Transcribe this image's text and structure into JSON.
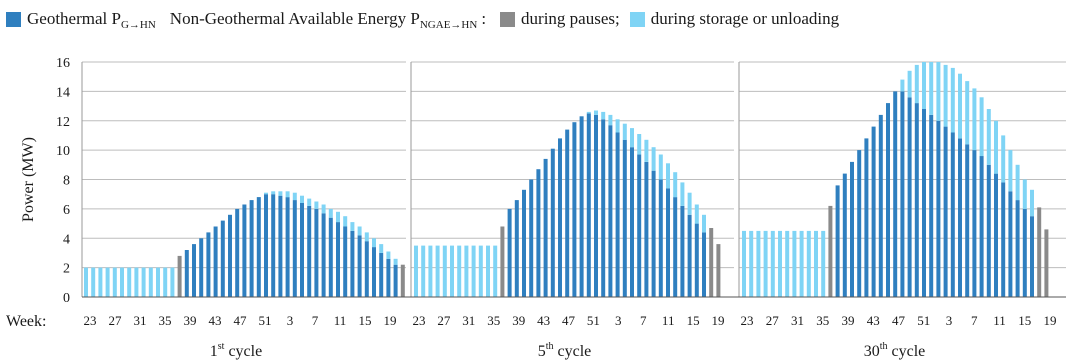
{
  "legend": {
    "geo_label": "Geothermal P",
    "geo_sub": "G→HN",
    "ngae_label": "Non-Geothermal Available Energy P",
    "ngae_sub": "NGAE→HN",
    "ngae_suffix": ":",
    "pause_label": "during pauses;",
    "storage_label": "during storage or unloading"
  },
  "colors": {
    "geothermal": "#2f7fbf",
    "pause": "#8a8a8a",
    "storage": "#7fd4f5",
    "grid": "#bdbdbd"
  },
  "chart_data": {
    "type": "bar",
    "ylabel": "Power (MW)",
    "xlabel": "Week:",
    "ylim": [
      0,
      16
    ],
    "yticks": [
      0,
      2,
      4,
      6,
      8,
      10,
      12,
      14,
      16
    ],
    "grid": true,
    "legend_position": "top",
    "xtick_labels": [
      "23",
      "27",
      "31",
      "35",
      "39",
      "43",
      "47",
      "51",
      "3",
      "7",
      "11",
      "15",
      "19"
    ],
    "panels": [
      {
        "title": "1st cycle",
        "title_base": "1",
        "title_sup": "st",
        "title_rest": " cycle",
        "storage_level": 2.0,
        "pause_values": [
          2.8,
          2.2
        ],
        "geothermal": [
          3.2,
          3.6,
          4.0,
          4.4,
          4.8,
          5.2,
          5.6,
          6.0,
          6.3,
          6.6,
          6.8,
          7.0,
          7.0,
          6.9,
          6.8,
          6.6,
          6.4,
          6.2,
          6.0,
          5.7,
          5.4,
          5.1,
          4.8,
          4.5,
          4.2,
          3.8,
          3.4,
          3.0,
          2.6,
          2.2
        ],
        "ngae_unloading": [
          0,
          0,
          0,
          0,
          0,
          0,
          0,
          0,
          0,
          0,
          0,
          0.1,
          0.2,
          0.3,
          0.4,
          0.5,
          0.5,
          0.5,
          0.5,
          0.6,
          0.6,
          0.7,
          0.7,
          0.6,
          0.6,
          0.6,
          0.6,
          0.6,
          0.5,
          0.4
        ]
      },
      {
        "title": "5th cycle",
        "title_base": "5",
        "title_sup": "th",
        "title_rest": " cycle",
        "storage_level": 3.5,
        "pause_values": [
          4.8,
          4.7,
          3.6
        ],
        "geothermal": [
          6.0,
          6.6,
          7.3,
          8.0,
          8.7,
          9.4,
          10.1,
          10.8,
          11.4,
          11.9,
          12.3,
          12.5,
          12.4,
          12.1,
          11.7,
          11.2,
          10.7,
          10.2,
          9.7,
          9.2,
          8.6,
          8.0,
          7.4,
          6.8,
          6.2,
          5.6,
          5.0,
          4.4
        ],
        "ngae_unloading": [
          0,
          0,
          0,
          0,
          0,
          0,
          0,
          0,
          0,
          0,
          0,
          0.1,
          0.3,
          0.5,
          0.7,
          0.9,
          1.1,
          1.3,
          1.4,
          1.5,
          1.6,
          1.7,
          1.7,
          1.7,
          1.6,
          1.5,
          1.3,
          1.2
        ]
      },
      {
        "title": "30th cycle",
        "title_base": "30",
        "title_sup": "th",
        "title_rest": " cycle",
        "storage_level": 4.5,
        "pause_values": [
          6.2,
          6.1,
          4.6
        ],
        "geothermal": [
          7.6,
          8.4,
          9.2,
          10.0,
          10.8,
          11.6,
          12.4,
          13.2,
          14.0,
          14.0,
          13.6,
          13.2,
          12.8,
          12.4,
          12.0,
          11.6,
          11.2,
          10.8,
          10.4,
          10.0,
          9.6,
          9.0,
          8.4,
          7.8,
          7.2,
          6.6,
          6.0,
          5.5
        ],
        "ngae_unloading": [
          0,
          0,
          0,
          0,
          0,
          0,
          0,
          0,
          0,
          0.8,
          1.8,
          2.6,
          3.2,
          3.6,
          4.0,
          4.2,
          4.4,
          4.4,
          4.3,
          4.2,
          4.0,
          3.8,
          3.6,
          3.2,
          2.8,
          2.4,
          2.0,
          1.8
        ]
      }
    ]
  }
}
